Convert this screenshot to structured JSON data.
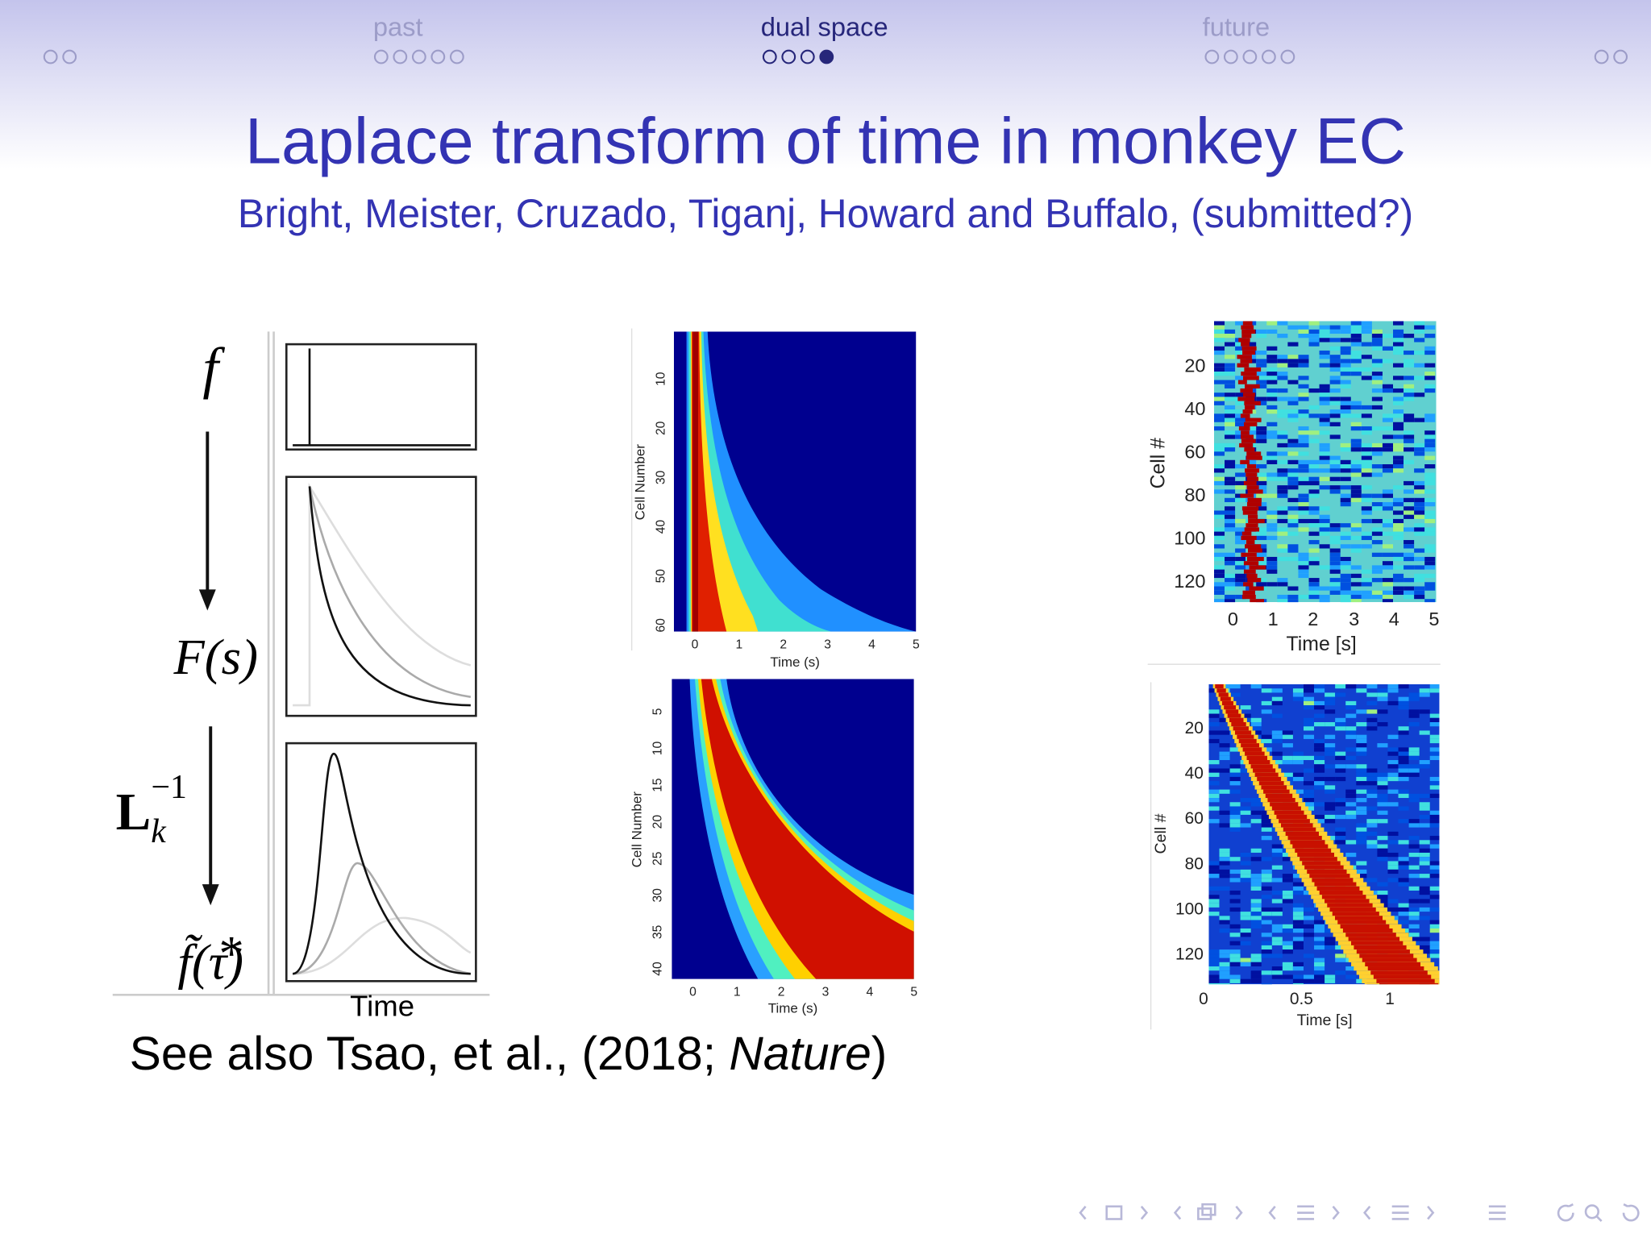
{
  "nav": {
    "sections": [
      "past",
      "dual space",
      "future"
    ]
  },
  "title": "Laplace transform of time in monkey EC",
  "authors": "Bright, Meister, Cruzado, Tiganj, Howard and Buffalo, (submitted?)",
  "schematic": {
    "f": "f",
    "F_s": "F(s)",
    "L": "L",
    "L_sub": "k",
    "L_sup": "−1",
    "f_tilde": "f̃(τ⃰)",
    "xlabel": "Time"
  },
  "heatmap_model_1": {
    "ylabel": "Cell Number",
    "yticks": [
      10,
      20,
      30,
      40,
      50,
      60
    ],
    "xticks": [
      0,
      1,
      2,
      3,
      4,
      5
    ],
    "xlabel": "Time (s)"
  },
  "heatmap_model_2": {
    "ylabel": "Cell Number",
    "yticks": [
      5,
      10,
      15,
      20,
      25,
      30,
      35,
      40
    ],
    "xticks": [
      0,
      1,
      2,
      3,
      4,
      5
    ],
    "xlabel": "Time (s)"
  },
  "heatmap_data_1": {
    "ylabel": "Cell #",
    "yticks": [
      20,
      40,
      60,
      80,
      100,
      120
    ],
    "xticks": [
      0,
      1,
      2,
      3,
      4,
      5
    ],
    "xlabel": "Time [s]"
  },
  "heatmap_data_2": {
    "ylabel": "Cell #",
    "yticks": [
      20,
      40,
      60,
      80,
      100,
      120
    ],
    "xticks": [
      0,
      0.5,
      1
    ],
    "xlabel": "Time [s]"
  },
  "footnote": {
    "prefix": "See also Tsao, et al., (2018; ",
    "journal": "Nature",
    "suffix": ")"
  }
}
